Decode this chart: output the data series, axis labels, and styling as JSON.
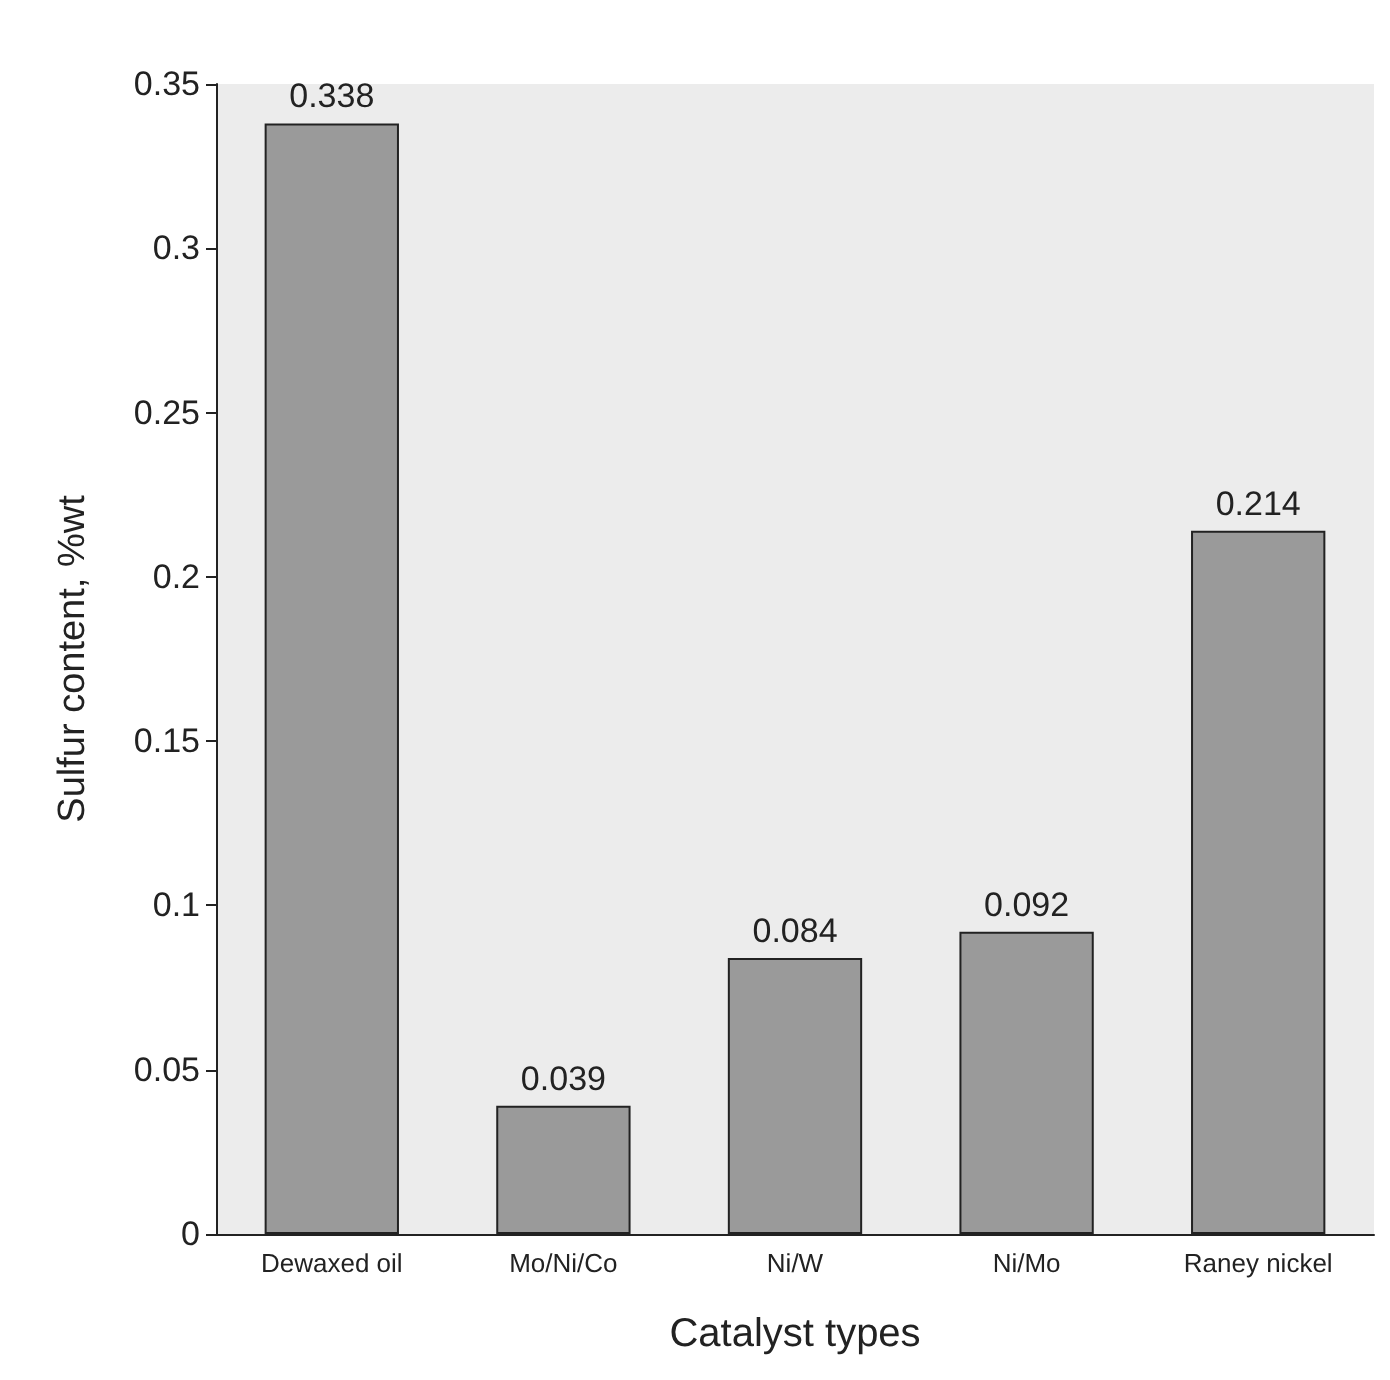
{
  "chart_data": {
    "type": "bar",
    "xlabel": "Catalyst types",
    "ylabel": "Sulfur content, %wt",
    "categories": [
      "Dewaxed oil",
      "Mo/Ni/Co",
      "Ni/W",
      "Ni/Mo",
      "Raney nickel"
    ],
    "values": [
      0.338,
      0.039,
      0.084,
      0.092,
      0.214
    ],
    "color": "#9a9a9a",
    "ylim": [
      0,
      0.35
    ],
    "yticks": [
      0,
      0.05,
      0.1,
      0.15,
      0.2,
      0.25,
      0.3,
      0.35
    ],
    "data_labels": true
  }
}
